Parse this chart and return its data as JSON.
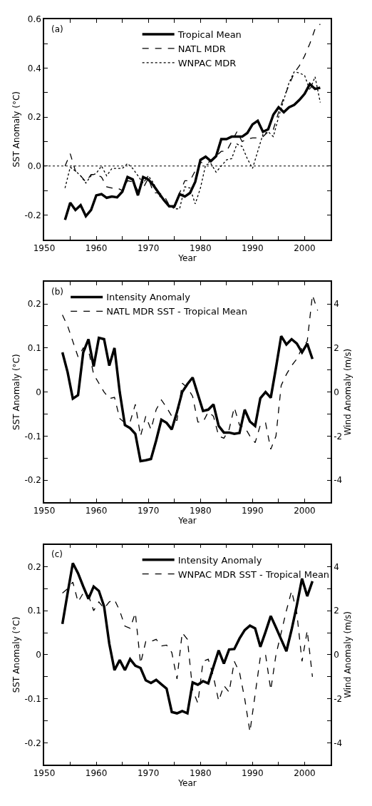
{
  "chart_data": [
    {
      "type": "line",
      "xlabel": "Year",
      "ylabel": "SST Anomaly (°C)",
      "annotations": [
        "(a)"
      ],
      "legend": "top",
      "xlim": [
        1950,
        2005
      ],
      "xticks": [
        1950,
        {
          "value": 1955,
          "label": null
        },
        1960,
        {
          "value": 1965,
          "label": null
        },
        1970,
        {
          "value": 1975,
          "label": null
        },
        1980,
        {
          "value": 1985,
          "label": null
        },
        1990,
        {
          "value": 1995,
          "label": null
        },
        2000,
        {
          "value": 2005,
          "label": null
        }
      ],
      "ylim": [
        -0.3,
        0.6
      ],
      "yticks": [
        {
          "value": -0.3,
          "label": null
        },
        -0.2,
        {
          "value": -0.1,
          "label": null
        },
        {
          "value": 0,
          "label": "0.0"
        },
        {
          "value": 0.1,
          "label": null
        },
        0.2,
        {
          "value": 0.3,
          "label": null
        },
        0.4,
        {
          "value": 0.5,
          "label": null
        },
        0.6
      ],
      "ref_lines": [
        {
          "axis": "y",
          "value": 0,
          "label": null,
          "color": "#000000",
          "line_style": "dotted"
        }
      ],
      "series": [
        {
          "name": "Tropical Mean",
          "color": "#000000",
          "line_style": "solid",
          "x": [
            1954,
            1955,
            1956,
            1957,
            1958,
            1959,
            1960,
            1961,
            1962,
            1963,
            1964,
            1965,
            1966,
            1967,
            1968,
            1969,
            1970,
            1971,
            1972,
            1973,
            1974,
            1975,
            1976,
            1977,
            1978,
            1979,
            1980,
            1981,
            1982,
            1983,
            1984,
            1985,
            1986,
            1987,
            1988,
            1989,
            1990,
            1991,
            1992,
            1993,
            1994,
            1995,
            1996,
            1997,
            1998,
            1999,
            2000,
            2001,
            2002,
            2003
          ],
          "values": [
            -0.22,
            -0.15,
            -0.18,
            -0.16,
            -0.205,
            -0.18,
            -0.12,
            -0.115,
            -0.13,
            -0.125,
            -0.128,
            -0.105,
            -0.045,
            -0.055,
            -0.12,
            -0.045,
            -0.055,
            -0.08,
            -0.11,
            -0.14,
            -0.165,
            -0.165,
            -0.115,
            -0.125,
            -0.11,
            -0.065,
            0.025,
            0.038,
            0.02,
            0.04,
            0.11,
            0.11,
            0.12,
            0.12,
            0.12,
            0.135,
            0.17,
            0.185,
            0.14,
            0.15,
            0.21,
            0.24,
            0.22,
            0.24,
            0.25,
            0.27,
            0.295,
            0.335,
            0.315,
            0.32
          ]
        },
        {
          "name": "NATL MDR",
          "color": "#000000",
          "line_style": "dashed",
          "x": [
            1954,
            1955,
            1956,
            1957,
            1958,
            1959,
            1960,
            1961,
            1962,
            1963,
            1964,
            1965,
            1966,
            1967,
            1968,
            1969,
            1970,
            1971,
            1972,
            1973,
            1974,
            1975,
            1976,
            1977,
            1978,
            1979,
            1980,
            1981,
            1982,
            1983,
            1984,
            1985,
            1986,
            1987,
            1988,
            1989,
            1990,
            1991,
            1992,
            1993,
            1994,
            1995,
            1996,
            1997,
            1998,
            1999,
            2000,
            2001,
            2002,
            2003
          ],
          "values": [
            0.0,
            0.05,
            -0.02,
            -0.04,
            -0.065,
            -0.035,
            -0.035,
            -0.045,
            -0.085,
            -0.09,
            -0.09,
            -0.1,
            -0.06,
            -0.065,
            -0.1,
            -0.09,
            -0.05,
            -0.11,
            -0.11,
            -0.12,
            -0.16,
            -0.17,
            -0.11,
            -0.06,
            -0.06,
            -0.02,
            0.015,
            0.01,
            0.02,
            0.04,
            0.06,
            0.06,
            0.1,
            0.14,
            0.1,
            0.11,
            0.115,
            0.115,
            0.12,
            0.14,
            0.15,
            0.22,
            0.28,
            0.33,
            0.38,
            0.41,
            0.45,
            0.5,
            0.56,
            0.58
          ]
        },
        {
          "name": "WNPAC MDR",
          "color": "#000000",
          "line_style": "dotted",
          "x": [
            1954,
            1955,
            1956,
            1957,
            1958,
            1959,
            1960,
            1961,
            1962,
            1963,
            1964,
            1965,
            1966,
            1967,
            1968,
            1969,
            1970,
            1971,
            1972,
            1973,
            1974,
            1975,
            1976,
            1977,
            1978,
            1979,
            1980,
            1981,
            1982,
            1983,
            1984,
            1985,
            1986,
            1987,
            1988,
            1989,
            1990,
            1991,
            1992,
            1993,
            1994,
            1995,
            1996,
            1997,
            1998,
            1999,
            2000,
            2001,
            2002,
            2003
          ],
          "values": [
            -0.09,
            -0.005,
            -0.02,
            -0.04,
            -0.07,
            -0.04,
            -0.03,
            0.0,
            -0.04,
            -0.01,
            -0.01,
            -0.01,
            0.01,
            -0.01,
            -0.04,
            -0.07,
            -0.04,
            -0.07,
            -0.12,
            -0.14,
            -0.16,
            -0.175,
            -0.175,
            -0.085,
            -0.09,
            -0.155,
            -0.09,
            0.005,
            0.01,
            -0.025,
            0.0,
            0.025,
            0.03,
            0.09,
            0.08,
            0.03,
            -0.01,
            0.06,
            0.13,
            0.14,
            0.12,
            0.2,
            0.27,
            0.34,
            0.385,
            0.38,
            0.37,
            0.31,
            0.365,
            0.26
          ]
        }
      ]
    },
    {
      "type": "line",
      "xlabel": "Year",
      "ylabel": "SST Anomaly (°C)",
      "y2label": "Wind Anomaly (m/s)",
      "annotations": [
        "(b)"
      ],
      "legend": "top left",
      "xlim": [
        1950,
        2005
      ],
      "xticks": [
        1950,
        {
          "value": 1955,
          "label": null
        },
        1960,
        {
          "value": 1965,
          "label": null
        },
        1970,
        {
          "value": 1975,
          "label": null
        },
        1980,
        {
          "value": 1985,
          "label": null
        },
        1990,
        {
          "value": 1995,
          "label": null
        },
        2000,
        {
          "value": 2005,
          "label": null
        }
      ],
      "ylim": [
        -0.25,
        0.25
      ],
      "yticks": [
        -0.2,
        {
          "value": -0.15,
          "label": null
        },
        -0.1,
        {
          "value": -0.05,
          "label": null
        },
        0,
        {
          "value": 0.05,
          "label": null
        },
        0.1,
        {
          "value": 0.15,
          "label": null
        },
        0.2
      ],
      "y2lim": [
        -5,
        5
      ],
      "y2ticks": [
        -4,
        {
          "value": -3,
          "label": null
        },
        -2,
        {
          "value": -1,
          "label": null
        },
        0,
        {
          "value": 1,
          "label": null
        },
        2,
        {
          "value": 3,
          "label": null
        },
        4
      ],
      "series": [
        {
          "name": "Intensity Anomaly",
          "color": "#000000",
          "line_style": "solid",
          "axis": "y2",
          "x": [
            1953.5,
            1954.5,
            1955.5,
            1956.5,
            1957.5,
            1958.5,
            1959.5,
            1960.5,
            1961.5,
            1962.5,
            1963.5,
            1964.5,
            1965.5,
            1966.5,
            1967.5,
            1968.5,
            1969.5,
            1970.5,
            1971.5,
            1972.5,
            1973.5,
            1974.5,
            1975.5,
            1976.5,
            1977.5,
            1978.5,
            1979.5,
            1980.5,
            1981.5,
            1982.5,
            1983.5,
            1984.5,
            1985.5,
            1986.5,
            1987.5,
            1988.5,
            1989.5,
            1990.5,
            1991.5,
            1992.5,
            1993.5,
            1994.5,
            1995.5,
            1996.5,
            1997.5,
            1998.5,
            1999.5,
            2000.5,
            2001.5
          ],
          "values": [
            1.8,
            0.9,
            -0.3,
            -0.14,
            1.8,
            2.4,
            1.16,
            2.46,
            2.4,
            1.2,
            2.0,
            0.0,
            -1.5,
            -1.64,
            -1.9,
            -3.14,
            -3.1,
            -3.04,
            -2.2,
            -1.26,
            -1.4,
            -1.7,
            -0.9,
            0.0,
            0.36,
            0.66,
            -0.1,
            -0.86,
            -0.8,
            -0.56,
            -1.54,
            -1.84,
            -1.84,
            -1.9,
            -1.86,
            -0.8,
            -1.34,
            -1.54,
            -0.28,
            0.0,
            -0.26,
            1.1,
            2.54,
            2.16,
            2.4,
            2.2,
            1.8,
            2.2,
            1.5
          ]
        },
        {
          "name": "NATL MDR SST - Tropical Mean",
          "color": "#000000",
          "line_style": "dashed",
          "x": [
            1953.5,
            1954.5,
            1955.5,
            1956.5,
            1957.5,
            1958.5,
            1959.5,
            1960.5,
            1961.5,
            1962.5,
            1963.5,
            1964.5,
            1965.5,
            1966.5,
            1967.5,
            1968.5,
            1969.5,
            1970.5,
            1971.5,
            1972.5,
            1973.5,
            1974.5,
            1975.5,
            1976.5,
            1977.5,
            1978.5,
            1979.5,
            1980.5,
            1981.5,
            1982.5,
            1983.5,
            1984.5,
            1985.5,
            1986.5,
            1987.5,
            1988.5,
            1989.5,
            1990.5,
            1991.5,
            1992.5,
            1993.5,
            1994.5,
            1995.5,
            1996.5,
            1997.5,
            1998.5,
            1999.5,
            2000.5,
            2001.5,
            2002.5
          ],
          "values": [
            0.175,
            0.15,
            0.115,
            0.08,
            0.1,
            0.095,
            0.04,
            0.02,
            0.0,
            -0.015,
            -0.012,
            -0.06,
            -0.07,
            -0.068,
            -0.028,
            -0.1,
            -0.055,
            -0.085,
            -0.04,
            -0.018,
            -0.035,
            -0.055,
            -0.065,
            0.02,
            0.01,
            -0.01,
            -0.068,
            -0.068,
            -0.045,
            -0.055,
            -0.1,
            -0.105,
            -0.085,
            -0.035,
            -0.075,
            -0.08,
            -0.1,
            -0.115,
            -0.075,
            -0.07,
            -0.13,
            -0.1,
            0.015,
            0.04,
            0.06,
            0.075,
            0.1,
            0.115,
            0.22,
            0.185
          ]
        }
      ]
    },
    {
      "type": "line",
      "xlabel": "Year",
      "ylabel": "SST Anomaly (°C)",
      "y2label": "Wind Anomaly (m/s)",
      "annotations": [
        "(c)"
      ],
      "legend": "top",
      "xlim": [
        1950,
        2005
      ],
      "xticks": [
        1950,
        {
          "value": 1955,
          "label": null
        },
        1960,
        {
          "value": 1965,
          "label": null
        },
        1970,
        {
          "value": 1975,
          "label": null
        },
        1980,
        {
          "value": 1985,
          "label": null
        },
        1990,
        {
          "value": 1995,
          "label": null
        },
        2000,
        {
          "value": 2005,
          "label": null
        }
      ],
      "ylim": [
        -0.25,
        0.25
      ],
      "yticks": [
        -0.2,
        {
          "value": -0.15,
          "label": null
        },
        -0.1,
        {
          "value": -0.05,
          "label": null
        },
        0,
        {
          "value": 0.05,
          "label": null
        },
        0.1,
        {
          "value": 0.15,
          "label": null
        },
        0.2
      ],
      "y2lim": [
        -5,
        5
      ],
      "y2ticks": [
        -4,
        {
          "value": -3,
          "label": null
        },
        -2,
        {
          "value": -1,
          "label": null
        },
        0,
        {
          "value": 1,
          "label": null
        },
        2,
        {
          "value": 3,
          "label": null
        },
        4
      ],
      "series": [
        {
          "name": "Intensity Anomaly",
          "color": "#000000",
          "line_style": "solid",
          "axis": "y2",
          "x": [
            1953.5,
            1954.5,
            1955.5,
            1956.5,
            1957.5,
            1958.5,
            1959.5,
            1960.5,
            1961.5,
            1962.5,
            1963.5,
            1964.5,
            1965.5,
            1966.5,
            1967.5,
            1968.5,
            1969.5,
            1970.5,
            1971.5,
            1972.5,
            1973.5,
            1974.5,
            1975.5,
            1976.5,
            1977.5,
            1978.5,
            1979.5,
            1980.5,
            1981.5,
            1982.5,
            1983.5,
            1984.5,
            1985.5,
            1986.5,
            1987.5,
            1988.5,
            1989.5,
            1990.5,
            1991.5,
            1992.5,
            1993.5,
            1994.5,
            1995.5,
            1996.5,
            1997.5,
            1998.5,
            1999.5,
            2000.5,
            2001.5
          ],
          "values": [
            1.4,
            2.8,
            4.16,
            3.7,
            3.1,
            2.54,
            3.1,
            2.9,
            2.2,
            0.5,
            -0.7,
            -0.24,
            -0.7,
            -0.2,
            -0.5,
            -0.6,
            -1.16,
            -1.28,
            -1.14,
            -1.34,
            -1.54,
            -2.6,
            -2.66,
            -2.56,
            -2.66,
            -1.26,
            -1.36,
            -1.2,
            -1.3,
            -0.54,
            0.2,
            -0.4,
            0.24,
            0.26,
            0.74,
            1.12,
            1.32,
            1.2,
            0.36,
            1.04,
            1.76,
            1.24,
            0.7,
            0.16,
            1.14,
            2.24,
            3.46,
            2.66,
            3.34
          ]
        },
        {
          "name": "WNPAC MDR SST - Tropical Mean",
          "color": "#000000",
          "line_style": "dashed",
          "x": [
            1953.5,
            1954.5,
            1955.5,
            1956.5,
            1957.5,
            1958.5,
            1959.5,
            1960.5,
            1961.5,
            1962.5,
            1963.5,
            1964.5,
            1965.5,
            1966.5,
            1967.5,
            1968.5,
            1969.5,
            1970.5,
            1971.5,
            1972.5,
            1973.5,
            1974.5,
            1975.5,
            1976.5,
            1977.5,
            1978.5,
            1979.5,
            1980.5,
            1981.5,
            1982.5,
            1983.5,
            1984.5,
            1985.5,
            1986.5,
            1987.5,
            1988.5,
            1989.5,
            1990.5,
            1991.5,
            1992.5,
            1993.5,
            1994.5,
            1995.5,
            1996.5,
            1997.5,
            1998.5,
            1999.5,
            2000.5,
            2001.5
          ],
          "values": [
            0.14,
            0.15,
            0.165,
            0.12,
            0.14,
            0.135,
            0.1,
            0.12,
            0.105,
            0.12,
            0.125,
            0.1,
            0.065,
            0.06,
            0.095,
            -0.02,
            0.03,
            0.03,
            0.035,
            0.02,
            0.022,
            0.005,
            -0.055,
            0.05,
            0.035,
            -0.08,
            -0.11,
            -0.015,
            -0.01,
            -0.05,
            -0.105,
            -0.07,
            -0.085,
            -0.015,
            -0.04,
            -0.1,
            -0.175,
            -0.09,
            -0.005,
            0.0,
            -0.08,
            0.0,
            0.05,
            0.1,
            0.145,
            0.095,
            -0.015,
            0.055,
            -0.05
          ]
        }
      ]
    }
  ]
}
